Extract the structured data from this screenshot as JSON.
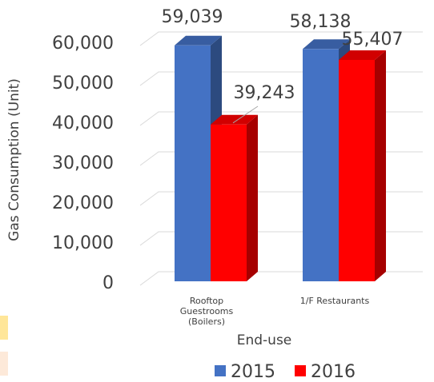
{
  "chart_data": {
    "type": "bar3d",
    "categories": [
      "Rooftop Guestrooms (Boilers)",
      "1/F Restaurants"
    ],
    "series": [
      {
        "name": "2015",
        "color": "#4472c4",
        "values": [
          59039,
          58138
        ],
        "value_labels": [
          "59,039",
          "58,138"
        ]
      },
      {
        "name": "2016",
        "color": "#ff0000",
        "values": [
          39243,
          55407
        ],
        "value_labels": [
          "39,243",
          "55,407"
        ]
      }
    ],
    "y_label": "Gas Consumption (Unit)",
    "x_label": "End-use",
    "ylim": [
      0,
      60000
    ],
    "yticks": [
      0,
      {
        "value": 10000,
        "label": "10,000"
      },
      {
        "value": 20000,
        "label": "20,000"
      },
      {
        "value": 30000,
        "label": "30,000"
      },
      {
        "value": 40000,
        "label": "40,000"
      },
      {
        "value": 50000,
        "label": "50,000"
      },
      {
        "value": 60000,
        "label": "60,000"
      }
    ],
    "grid": true,
    "legend": "bottom"
  }
}
